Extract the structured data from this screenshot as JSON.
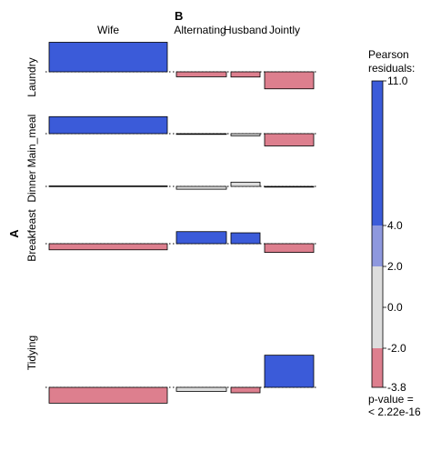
{
  "chart_data": {
    "type": "association-plot",
    "col_var": "B",
    "row_var": "A",
    "columns": [
      "Wife",
      "Alternating",
      "Husband",
      "Jointly"
    ],
    "rows": [
      "Laundry",
      "Main_meal",
      "Dinner",
      "Breakfeast",
      "Tidying"
    ],
    "residuals": [
      [
        12.5,
        -2.1,
        -2.2,
        -7.2
      ],
      [
        7.2,
        -0.1,
        -0.9,
        -5.2
      ],
      [
        0.2,
        -1.2,
        1.8,
        -0.2
      ],
      [
        -2.6,
        5.1,
        4.6,
        -3.7
      ],
      [
        -6.7,
        -1.7,
        -2.3,
        13.6
      ]
    ],
    "legend": {
      "title_line1": "Pearson",
      "title_line2": "residuals:",
      "ticks": [
        "11.0",
        "4.0",
        "2.0",
        "0.0",
        "-2.0",
        "-3.8"
      ],
      "p_value_line1": "p-value =",
      "p_value_line2": "< 2.22e-16"
    },
    "colors": {
      "strong_pos": "#3b5bd9",
      "mild_pos": "#8e98de",
      "neutral": "#dddddd",
      "mild_neg": "#dd7f8e",
      "strong_neg": "#d95f73"
    }
  }
}
